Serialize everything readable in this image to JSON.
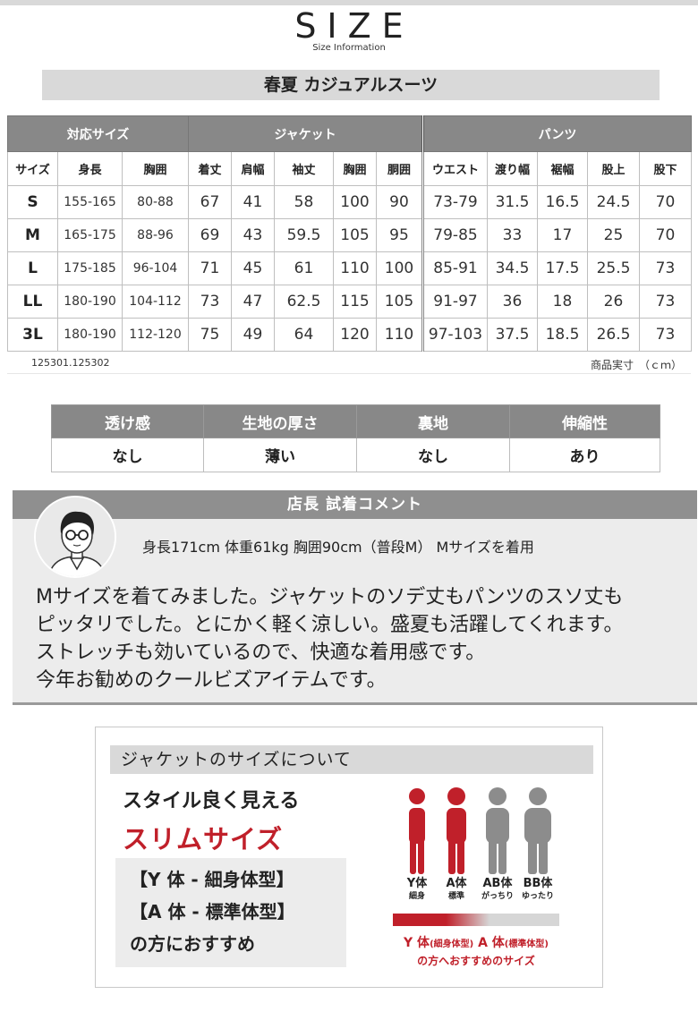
{
  "header": {
    "title": "SIZE",
    "subtitle": "Size Information"
  },
  "banner": "春夏 カジュアルスーツ",
  "size_table": {
    "group_headers": [
      "対応サイズ",
      "ジャケット",
      "パンツ"
    ],
    "columns": [
      "サイズ",
      "身長",
      "胸囲",
      "着丈",
      "肩幅",
      "袖丈",
      "胸囲",
      "胴囲",
      "ウエスト",
      "渡り幅",
      "裾幅",
      "股上",
      "股下"
    ],
    "rows": [
      [
        "S",
        "155-165",
        "80-88",
        "67",
        "41",
        "58",
        "100",
        "90",
        "73-79",
        "31.5",
        "16.5",
        "24.5",
        "70"
      ],
      [
        "M",
        "165-175",
        "88-96",
        "69",
        "43",
        "59.5",
        "105",
        "95",
        "79-85",
        "33",
        "17",
        "25",
        "70"
      ],
      [
        "L",
        "175-185",
        "96-104",
        "71",
        "45",
        "61",
        "110",
        "100",
        "85-91",
        "34.5",
        "17.5",
        "25.5",
        "73"
      ],
      [
        "LL",
        "180-190",
        "104-112",
        "73",
        "47",
        "62.5",
        "115",
        "105",
        "91-97",
        "36",
        "18",
        "26",
        "73"
      ],
      [
        "3L",
        "180-190",
        "112-120",
        "75",
        "49",
        "64",
        "120",
        "110",
        "97-103",
        "37.5",
        "18.5",
        "26.5",
        "73"
      ]
    ],
    "product_code": "125301.125302",
    "unit_note": "商品実寸　（ｃｍ）"
  },
  "features": {
    "headers": [
      "透け感",
      "生地の厚さ",
      "裏地",
      "伸縮性"
    ],
    "values": [
      "なし",
      "薄い",
      "なし",
      "あり"
    ]
  },
  "comment": {
    "title": "店長 試着コメント",
    "stats": "身長171cm 体重61kg 胸囲90cm（普段M） Mサイズを着用",
    "text": "Mサイズを着てみました。ジャケットのソデ丈もパンツのスソ丈も\nピッタリでした。とにかく軽く涼しい。盛夏も活躍してくれます。\nストレッチも効いているので、快適な着用感です。\n今年お勧めのクールビズアイテムです。"
  },
  "jacket_panel": {
    "heading": "ジャケットのサイズについて",
    "line1": "スタイル良く見える",
    "line2": "スリムサイズ",
    "box_lines": [
      "【Y 体 - 細身体型】",
      "【A 体 - 標準体型】",
      "の方におすすめ"
    ],
    "figures": [
      {
        "label": "Y体",
        "sub": "細身",
        "color": "#c0202a"
      },
      {
        "label": "A体",
        "sub": "標準",
        "color": "#c0202a"
      },
      {
        "label": "AB体",
        "sub": "がっちり",
        "color": "#8c8c8c"
      },
      {
        "label": "BB体",
        "sub": "ゆったり",
        "color": "#8c8c8c"
      }
    ],
    "recommend_main_1": "Y 体",
    "recommend_sub_1": "(細身体型)",
    "recommend_main_2": "A 体",
    "recommend_sub_2": "(標準体型)",
    "recommend_line2": "の方へおすすめのサイズ"
  }
}
